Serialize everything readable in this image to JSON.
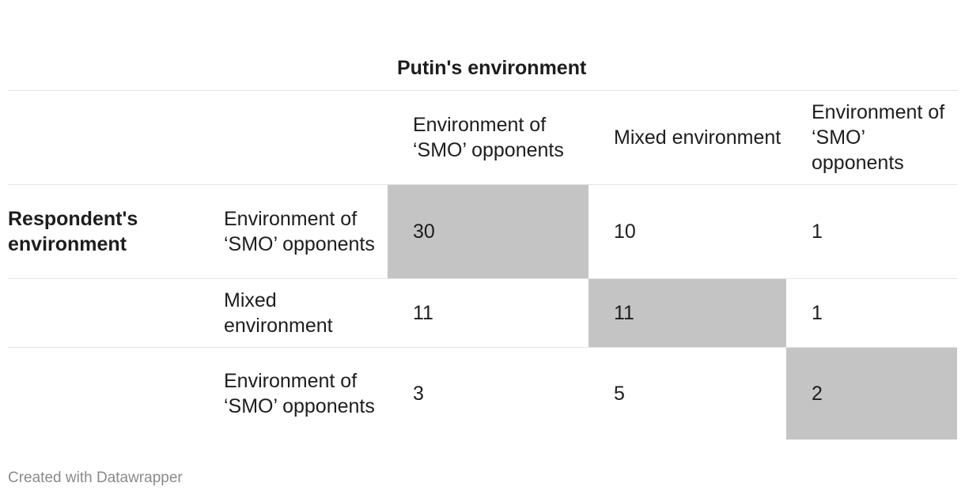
{
  "chart_data": {
    "type": "table",
    "column_group_label": "Putin's environment",
    "row_group_label": "Respondent's environment",
    "columns": [
      "Environment of ‘SMO’ opponents",
      "Mixed environment",
      "Environment of ‘SMO’ opponents"
    ],
    "rows": [
      {
        "label": "Environment of ‘SMO’ opponents",
        "values": [
          "30",
          "10",
          "1"
        ]
      },
      {
        "label": "Mixed environment",
        "values": [
          "11",
          "11",
          "1"
        ]
      },
      {
        "label": "Environment of ‘SMO’ opponents",
        "values": [
          "3",
          "5",
          "2"
        ]
      }
    ],
    "highlight_color": "#c4c4c4"
  },
  "footer": {
    "credit": "Created with Datawrapper"
  }
}
